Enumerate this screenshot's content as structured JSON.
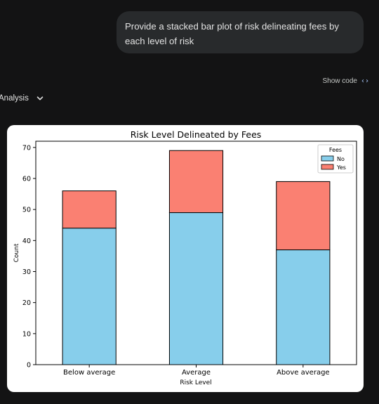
{
  "conversation": {
    "user_message": "Provide a stacked bar plot of risk delineating fees by each level of risk"
  },
  "toolbar": {
    "show_code_label": "Show code",
    "code_icon_glyph": "‹›",
    "code_icon": "code-brackets-icon"
  },
  "analysis": {
    "label": "Analysis",
    "icon": "chevron-down-icon"
  },
  "chart_data": {
    "type": "bar",
    "stacked": true,
    "title": "Risk Level Delineated by Fees",
    "xlabel": "Risk Level",
    "ylabel": "Count",
    "categories": [
      "Below average",
      "Average",
      "Above average"
    ],
    "ylim": [
      0,
      72
    ],
    "yticks": [
      0,
      10,
      20,
      30,
      40,
      50,
      60,
      70
    ],
    "legend": {
      "title": "Fees",
      "position": "top-right"
    },
    "grid": false,
    "series": [
      {
        "name": "No",
        "color": "#87ceeb",
        "values": [
          44,
          49,
          37
        ]
      },
      {
        "name": "Yes",
        "color": "#fa8072",
        "values": [
          12,
          20,
          22
        ]
      }
    ]
  }
}
